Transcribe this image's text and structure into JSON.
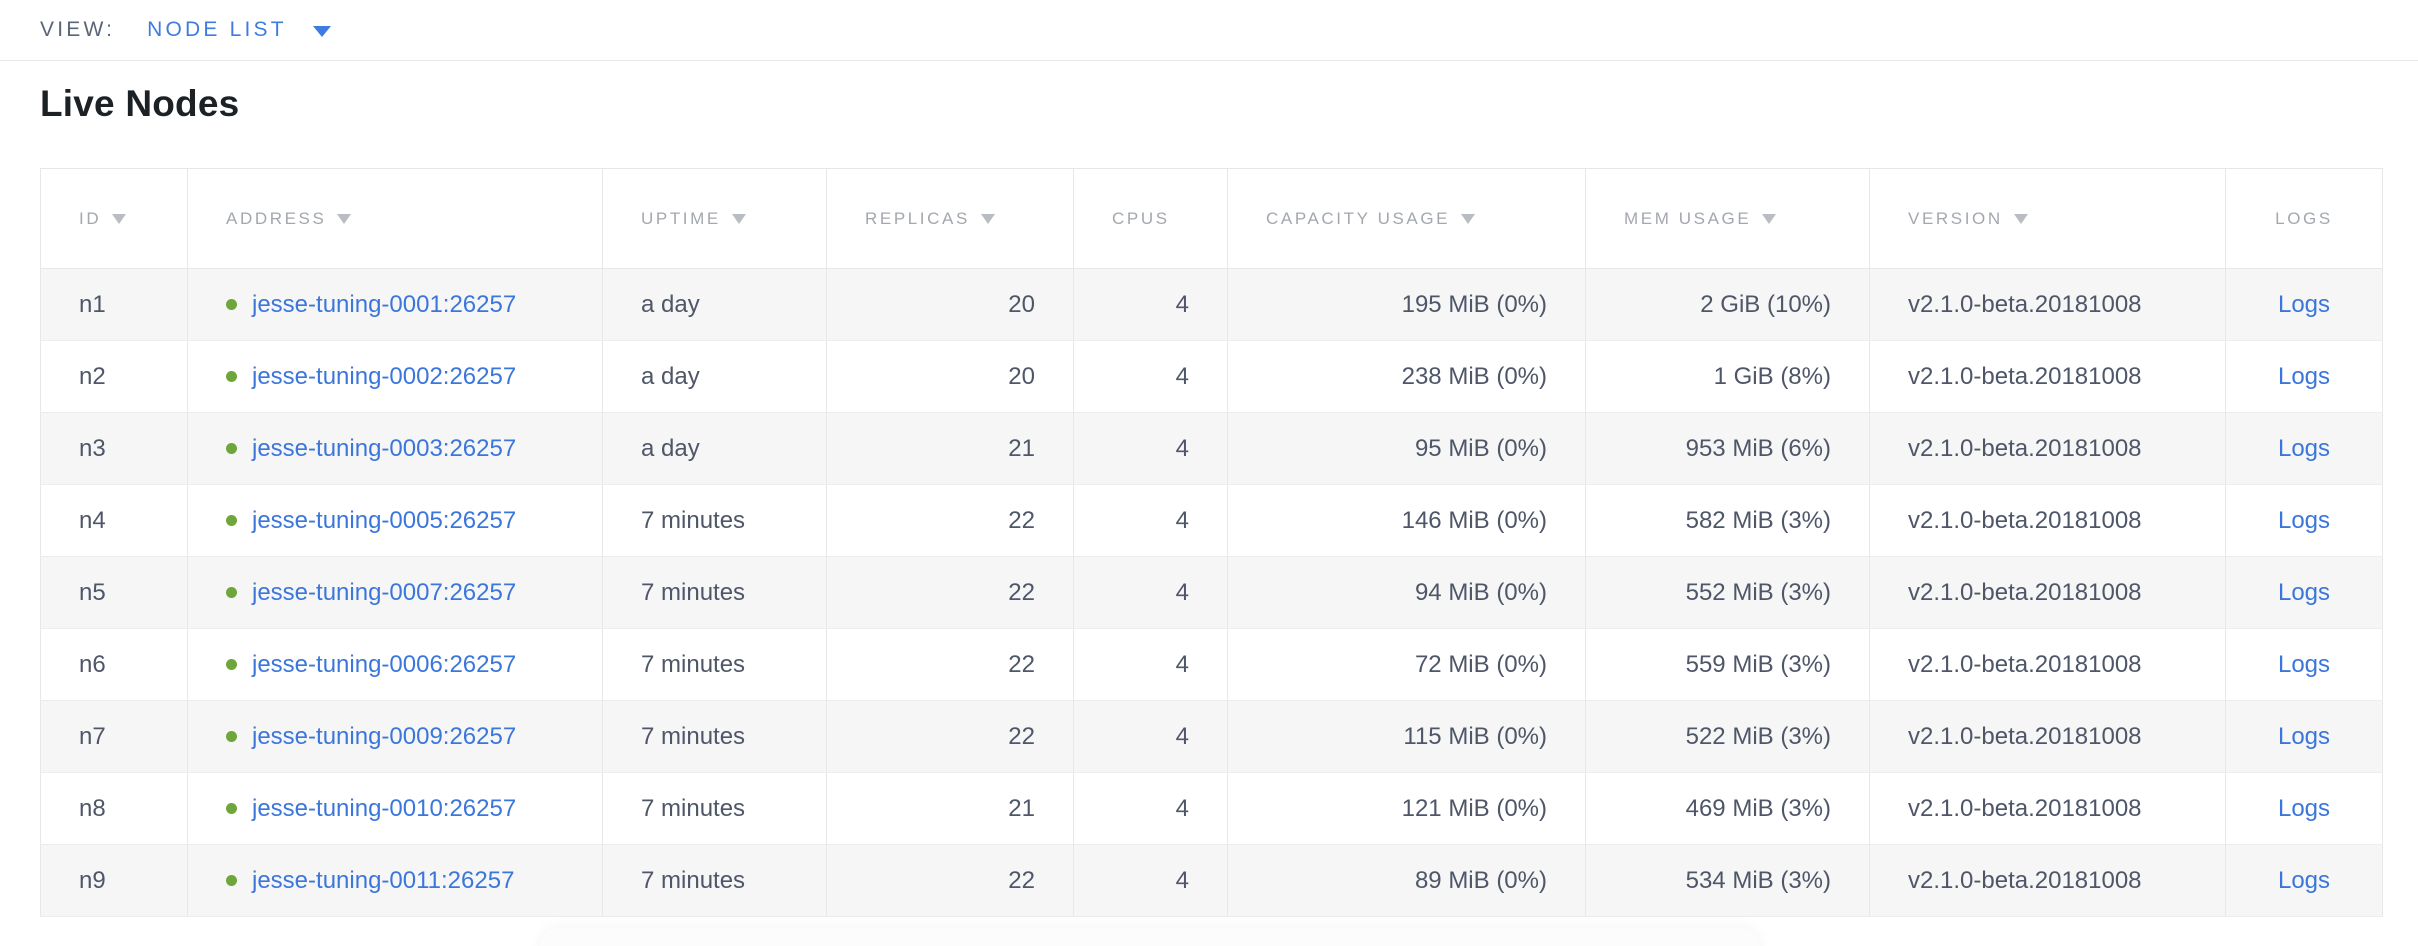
{
  "view_bar": {
    "label": "VIEW:",
    "selected": "NODE LIST"
  },
  "page": {
    "title": "Live Nodes"
  },
  "colors": {
    "link_blue": "#3b76db",
    "accent_blue": "#3f7ce2",
    "live_dot_green": "#6fa53c",
    "row_stripe": "#f6f6f6",
    "header_text": "#a3a7ae",
    "cell_text": "#4e5668"
  },
  "table": {
    "columns": [
      {
        "label": "ID",
        "sortable": true,
        "header_align": "left",
        "cell_align": "left"
      },
      {
        "label": "ADDRESS",
        "sortable": true,
        "header_align": "left",
        "cell_align": "left"
      },
      {
        "label": "UPTIME",
        "sortable": true,
        "header_align": "left",
        "cell_align": "left"
      },
      {
        "label": "REPLICAS",
        "sortable": true,
        "header_align": "left",
        "cell_align": "right"
      },
      {
        "label": "CPUS",
        "sortable": false,
        "header_align": "left",
        "cell_align": "right"
      },
      {
        "label": "CAPACITY USAGE",
        "sortable": true,
        "header_align": "left",
        "cell_align": "right"
      },
      {
        "label": "MEM USAGE",
        "sortable": true,
        "header_align": "left",
        "cell_align": "right"
      },
      {
        "label": "VERSION",
        "sortable": true,
        "header_align": "left",
        "cell_align": "left"
      },
      {
        "label": "LOGS",
        "sortable": false,
        "header_align": "center",
        "cell_align": "center"
      }
    ],
    "rows": [
      {
        "id": "n1",
        "address": "jesse-tuning-0001:26257",
        "uptime": "a day",
        "replicas": "20",
        "cpus": "4",
        "capacity_usage": "195 MiB (0%)",
        "mem_usage": "2 GiB (10%)",
        "version": "v2.1.0-beta.20181008",
        "logs_label": "Logs"
      },
      {
        "id": "n2",
        "address": "jesse-tuning-0002:26257",
        "uptime": "a day",
        "replicas": "20",
        "cpus": "4",
        "capacity_usage": "238 MiB (0%)",
        "mem_usage": "1 GiB (8%)",
        "version": "v2.1.0-beta.20181008",
        "logs_label": "Logs"
      },
      {
        "id": "n3",
        "address": "jesse-tuning-0003:26257",
        "uptime": "a day",
        "replicas": "21",
        "cpus": "4",
        "capacity_usage": "95 MiB (0%)",
        "mem_usage": "953 MiB (6%)",
        "version": "v2.1.0-beta.20181008",
        "logs_label": "Logs"
      },
      {
        "id": "n4",
        "address": "jesse-tuning-0005:26257",
        "uptime": "7 minutes",
        "replicas": "22",
        "cpus": "4",
        "capacity_usage": "146 MiB (0%)",
        "mem_usage": "582 MiB (3%)",
        "version": "v2.1.0-beta.20181008",
        "logs_label": "Logs"
      },
      {
        "id": "n5",
        "address": "jesse-tuning-0007:26257",
        "uptime": "7 minutes",
        "replicas": "22",
        "cpus": "4",
        "capacity_usage": "94 MiB (0%)",
        "mem_usage": "552 MiB (3%)",
        "version": "v2.1.0-beta.20181008",
        "logs_label": "Logs"
      },
      {
        "id": "n6",
        "address": "jesse-tuning-0006:26257",
        "uptime": "7 minutes",
        "replicas": "22",
        "cpus": "4",
        "capacity_usage": "72 MiB (0%)",
        "mem_usage": "559 MiB (3%)",
        "version": "v2.1.0-beta.20181008",
        "logs_label": "Logs"
      },
      {
        "id": "n7",
        "address": "jesse-tuning-0009:26257",
        "uptime": "7 minutes",
        "replicas": "22",
        "cpus": "4",
        "capacity_usage": "115 MiB (0%)",
        "mem_usage": "522 MiB (3%)",
        "version": "v2.1.0-beta.20181008",
        "logs_label": "Logs"
      },
      {
        "id": "n8",
        "address": "jesse-tuning-0010:26257",
        "uptime": "7 minutes",
        "replicas": "21",
        "cpus": "4",
        "capacity_usage": "121 MiB (0%)",
        "mem_usage": "469 MiB (3%)",
        "version": "v2.1.0-beta.20181008",
        "logs_label": "Logs"
      },
      {
        "id": "n9",
        "address": "jesse-tuning-0011:26257",
        "uptime": "7 minutes",
        "replicas": "22",
        "cpus": "4",
        "capacity_usage": "89 MiB (0%)",
        "mem_usage": "534 MiB (3%)",
        "version": "v2.1.0-beta.20181008",
        "logs_label": "Logs"
      }
    ]
  }
}
